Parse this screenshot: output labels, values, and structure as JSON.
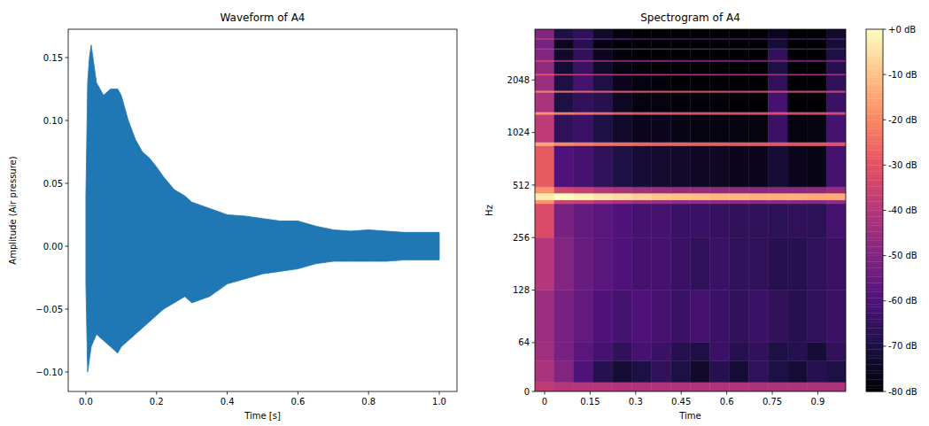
{
  "chart_data": [
    {
      "type": "area",
      "title": "Waveform of A4",
      "x_label": "Time [s]",
      "y_label": "Amplitude (Air pressure)",
      "color": "#1f77b4",
      "x": [
        0,
        0.005,
        0.01,
        0.015,
        0.03,
        0.05,
        0.07,
        0.09,
        0.1,
        0.12,
        0.14,
        0.16,
        0.18,
        0.2,
        0.22,
        0.25,
        0.28,
        0.3,
        0.35,
        0.4,
        0.45,
        0.5,
        0.55,
        0.6,
        0.65,
        0.7,
        0.75,
        0.8,
        0.85,
        0.9,
        0.95,
        1.0
      ],
      "series": [
        {
          "color": "#1f77b4",
          "values": [
            0.04,
            0.13,
            0.15,
            0.16,
            0.13,
            0.12,
            0.125,
            0.125,
            0.12,
            0.1,
            0.085,
            0.075,
            0.07,
            0.063,
            0.055,
            0.045,
            0.04,
            0.035,
            0.03,
            0.025,
            0.024,
            0.022,
            0.02,
            0.02,
            0.016,
            0.013,
            0.012,
            0.013,
            0.012,
            0.011,
            0.011,
            0.011
          ]
        },
        {
          "color": "#1f77b4",
          "values": [
            -0.03,
            -0.1,
            -0.09,
            -0.08,
            -0.07,
            -0.075,
            -0.08,
            -0.085,
            -0.08,
            -0.075,
            -0.07,
            -0.065,
            -0.06,
            -0.055,
            -0.05,
            -0.045,
            -0.04,
            -0.045,
            -0.04,
            -0.03,
            -0.026,
            -0.022,
            -0.02,
            -0.018,
            -0.014,
            -0.012,
            -0.012,
            -0.012,
            -0.012,
            -0.011,
            -0.011,
            -0.011
          ]
        }
      ],
      "xlim": [
        -0.05,
        1.05
      ],
      "xticks": [
        {
          "value": 0,
          "label": "0.0"
        },
        {
          "value": 0.2,
          "label": "0.2"
        },
        {
          "value": 0.4,
          "label": "0.4"
        },
        {
          "value": 0.6,
          "label": "0.6"
        },
        {
          "value": 0.8,
          "label": "0.8"
        },
        {
          "value": 1,
          "label": "1.0"
        }
      ],
      "ylim": [
        -0.1155,
        0.1725
      ],
      "yticks": [
        {
          "value": -0.1,
          "label": "−0.10"
        },
        {
          "value": -0.05,
          "label": "−0.05"
        },
        {
          "value": 0,
          "label": "0.00"
        },
        {
          "value": 0.05,
          "label": "0.05"
        },
        {
          "value": 0.1,
          "label": "0.10"
        },
        {
          "value": 0.15,
          "label": "0.15"
        }
      ],
      "grid": false
    },
    {
      "type": "heatmap",
      "title": "Spectrogram of A4",
      "x_label": "Time",
      "y_label": "Hz",
      "color": "magma",
      "log": "y",
      "x_bins": [
        -0.032,
        0.032,
        0.096,
        0.16,
        0.224,
        0.288,
        0.352,
        0.416,
        0.48,
        0.544,
        0.608,
        0.672,
        0.736,
        0.8,
        0.864,
        0.928,
        0.992
      ],
      "y_bins": [
        0,
        12,
        40,
        64,
        128,
        256,
        400,
        420,
        460,
        500,
        860,
        900,
        1300,
        1340,
        1740,
        1780,
        2180,
        2220,
        2620,
        2660,
        3060,
        3100,
        3500,
        3540,
        4000
      ],
      "cells": [
        [
          -38,
          -40,
          -40,
          -40,
          -41,
          -41,
          -41,
          -41,
          -41,
          -41,
          -41,
          -42,
          -42,
          -42,
          -42,
          -42
        ],
        [
          -42,
          -50,
          -60,
          -68,
          -72,
          -70,
          -66,
          -70,
          -74,
          -68,
          -72,
          -66,
          -70,
          -72,
          -68,
          -70
        ],
        [
          -44,
          -52,
          -58,
          -62,
          -66,
          -62,
          -64,
          -68,
          -70,
          -64,
          -68,
          -66,
          -70,
          -68,
          -72,
          -66
        ],
        [
          -45,
          -52,
          -56,
          -60,
          -62,
          -60,
          -62,
          -64,
          -62,
          -64,
          -66,
          -64,
          -66,
          -68,
          -66,
          -64
        ],
        [
          -40,
          -50,
          -55,
          -58,
          -60,
          -62,
          -62,
          -64,
          -66,
          -64,
          -66,
          -66,
          -68,
          -68,
          -66,
          -64
        ],
        [
          -32,
          -52,
          -56,
          -58,
          -60,
          -62,
          -62,
          -64,
          -64,
          -65,
          -66,
          -66,
          -67,
          -66,
          -67,
          -62
        ],
        [
          -18,
          -35,
          -36,
          -40,
          -42,
          -44,
          -45,
          -46,
          -46,
          -47,
          -47,
          -48,
          -48,
          -48,
          -48,
          -46
        ],
        [
          -3,
          0,
          -2,
          -4,
          -6,
          -8,
          -9,
          -10,
          -11,
          -12,
          -12,
          -13,
          -13,
          -13,
          -14,
          -14
        ],
        [
          -18,
          -34,
          -36,
          -40,
          -42,
          -44,
          -45,
          -46,
          -46,
          -47,
          -47,
          -48,
          -48,
          -48,
          -48,
          -46
        ],
        [
          -28,
          -60,
          -62,
          -66,
          -70,
          -72,
          -73,
          -74,
          -75,
          -75,
          -76,
          -76,
          -72,
          -76,
          -77,
          -62
        ],
        [
          -15,
          -20,
          -22,
          -24,
          -25,
          -26,
          -27,
          -27,
          -28,
          -28,
          -29,
          -29,
          -29,
          -30,
          -30,
          -30
        ],
        [
          -38,
          -66,
          -64,
          -70,
          -74,
          -76,
          -76,
          -77,
          -78,
          -78,
          -78,
          -78,
          -64,
          -78,
          -78,
          -62
        ],
        [
          -18,
          -22,
          -24,
          -26,
          -28,
          -29,
          -30,
          -30,
          -31,
          -31,
          -32,
          -32,
          -32,
          -33,
          -33,
          -33
        ],
        [
          -42,
          -70,
          -66,
          -68,
          -75,
          -78,
          -78,
          -79,
          -79,
          -79,
          -80,
          -80,
          -62,
          -80,
          -80,
          -64
        ],
        [
          -22,
          -26,
          -28,
          -30,
          -31,
          -32,
          -33,
          -33,
          -34,
          -34,
          -35,
          -35,
          -35,
          -36,
          -36,
          -36
        ],
        [
          -45,
          -70,
          -62,
          -70,
          -76,
          -78,
          -79,
          -80,
          -80,
          -80,
          -80,
          -80,
          -66,
          -80,
          -80,
          -66
        ],
        [
          -30,
          -36,
          -38,
          -40,
          -41,
          -42,
          -42,
          -43,
          -43,
          -44,
          -44,
          -44,
          -45,
          -45,
          -45,
          -45
        ],
        [
          -47,
          -72,
          -64,
          -74,
          -78,
          -79,
          -80,
          -80,
          -80,
          -80,
          -80,
          -80,
          -70,
          -80,
          -80,
          -68
        ],
        [
          -35,
          -42,
          -44,
          -45,
          -46,
          -47,
          -47,
          -48,
          -48,
          -48,
          -49,
          -49,
          -49,
          -50,
          -50,
          -50
        ],
        [
          -50,
          -74,
          -66,
          -76,
          -79,
          -80,
          -80,
          -80,
          -80,
          -80,
          -80,
          -80,
          -66,
          -80,
          -80,
          -70
        ],
        [
          -40,
          -50,
          -52,
          -54,
          -55,
          -56,
          -56,
          -57,
          -57,
          -58,
          -58,
          -58,
          -59,
          -59,
          -59,
          -59
        ],
        [
          -52,
          -76,
          -68,
          -78,
          -80,
          -80,
          -80,
          -80,
          -80,
          -80,
          -80,
          -80,
          -72,
          -80,
          -80,
          -72
        ],
        [
          -42,
          -55,
          -58,
          -60,
          -62,
          -63,
          -63,
          -64,
          -64,
          -65,
          -65,
          -65,
          -66,
          -66,
          -66,
          -66
        ],
        [
          -50,
          -70,
          -66,
          -74,
          -78,
          -80,
          -80,
          -80,
          -80,
          -80,
          -80,
          -80,
          -76,
          -80,
          -80,
          -74
        ]
      ],
      "xlim": [
        -0.032,
        0.992
      ],
      "xticks": [
        0,
        0.15,
        0.3,
        0.45,
        0.6,
        0.75,
        0.9
      ],
      "ylim": [
        0,
        4000
      ],
      "yticks": [
        0,
        64,
        128,
        256,
        512,
        1024,
        2048
      ],
      "colorbar_range": [
        -80,
        0
      ],
      "colorbar_ticks": [
        {
          "value": 0,
          "label": "+0 dB"
        },
        {
          "value": -10,
          "label": "-10 dB"
        },
        {
          "value": -20,
          "label": "-20 dB"
        },
        {
          "value": -30,
          "label": "-30 dB"
        },
        {
          "value": -40,
          "label": "-40 dB"
        },
        {
          "value": -50,
          "label": "-50 dB"
        },
        {
          "value": -60,
          "label": "-60 dB"
        },
        {
          "value": -70,
          "label": "-70 dB"
        },
        {
          "value": -80,
          "label": "-80 dB"
        }
      ],
      "grid": false
    }
  ]
}
